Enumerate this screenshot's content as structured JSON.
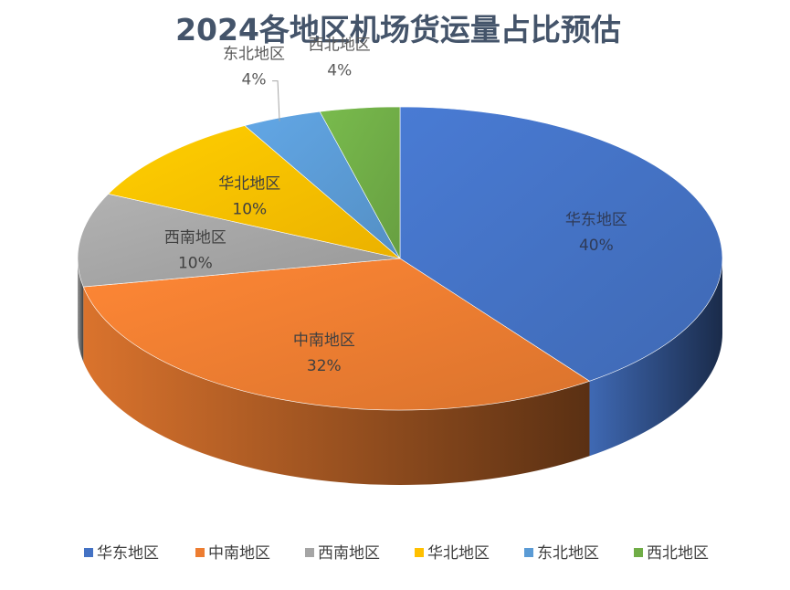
{
  "chart_data": {
    "type": "pie",
    "title": "2024各地区机场货运量占比预估",
    "categories": [
      "华东地区",
      "中南地区",
      "西南地区",
      "华北地区",
      "东北地区",
      "西北地区"
    ],
    "values": [
      40,
      32,
      10,
      10,
      4,
      4
    ],
    "value_labels": [
      "40%",
      "32%",
      "10%",
      "10%",
      "4%",
      "4%"
    ],
    "colors": [
      "#4472c4",
      "#ed7d31",
      "#a5a5a5",
      "#ffc000",
      "#5b9bd5",
      "#70ad47"
    ],
    "legend_position": "bottom",
    "style": "3d"
  }
}
